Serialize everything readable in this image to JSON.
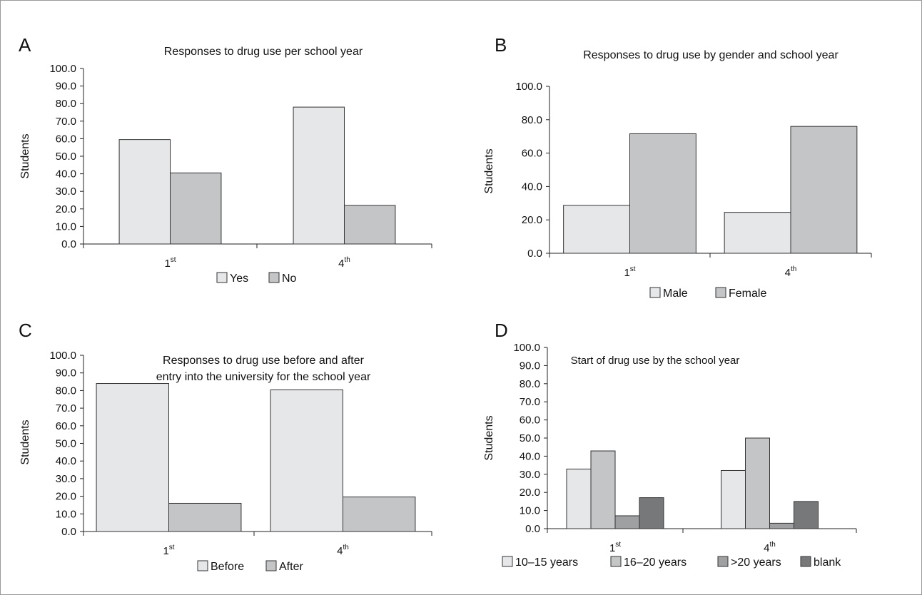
{
  "figure": {
    "panels": [
      {
        "letter": "A"
      },
      {
        "letter": "B"
      },
      {
        "letter": "C"
      },
      {
        "letter": "D"
      }
    ]
  },
  "chart_data": [
    {
      "panel": "A",
      "type": "bar",
      "title": "Responses to drug use per school year",
      "title_lines": [
        "Responses to drug use per school year"
      ],
      "ylabel": "Students",
      "xlabel": "",
      "ylim": [
        0,
        100
      ],
      "yticks": [
        "0.0",
        "10.0",
        "20.0",
        "30.0",
        "40.0",
        "50.0",
        "60.0",
        "70.0",
        "80.0",
        "90.0",
        "100.0"
      ],
      "categories": [
        {
          "base": "1",
          "sup": "st"
        },
        {
          "base": "4",
          "sup": "th"
        }
      ],
      "series": [
        {
          "name": "Yes",
          "color": "#e6e7e9",
          "values": [
            59.5,
            78.0
          ]
        },
        {
          "name": "No",
          "color": "#c4c5c7",
          "values": [
            40.5,
            22.0
          ]
        }
      ],
      "grid": false,
      "legend": "bottom"
    },
    {
      "panel": "B",
      "type": "bar",
      "title": "Responses to drug use by gender and school year",
      "title_lines": [
        "Responses to drug use by gender and school year"
      ],
      "ylabel": "Students",
      "xlabel": "",
      "ylim": [
        0,
        100
      ],
      "yticks": [
        "0.0",
        "20.0",
        "40.0",
        "60.0",
        "80.0",
        "100.0"
      ],
      "categories": [
        {
          "base": "1",
          "sup": "st"
        },
        {
          "base": "4",
          "sup": "th"
        }
      ],
      "series": [
        {
          "name": "Male",
          "color": "#e6e7e9",
          "values": [
            28.7,
            24.5
          ]
        },
        {
          "name": "Female",
          "color": "#c4c5c7",
          "values": [
            71.6,
            76.0
          ]
        }
      ],
      "grid": false,
      "legend": "bottom"
    },
    {
      "panel": "C",
      "type": "bar",
      "title": "Responses to drug use before and after entry into the university for the school year",
      "title_lines": [
        "Responses to drug use before and after",
        "entry into the university for the school year"
      ],
      "ylabel": "Students",
      "xlabel": "",
      "ylim": [
        0,
        100
      ],
      "yticks": [
        "0.0",
        "10.0",
        "20.0",
        "30.0",
        "40.0",
        "50.0",
        "60.0",
        "70.0",
        "80.0",
        "90.0",
        "100.0"
      ],
      "categories": [
        {
          "base": "1",
          "sup": "st"
        },
        {
          "base": "4",
          "sup": "th"
        }
      ],
      "series": [
        {
          "name": "Before",
          "color": "#e6e7e9",
          "values": [
            84.0,
            80.4
          ]
        },
        {
          "name": "After",
          "color": "#c4c5c7",
          "values": [
            16.0,
            19.6
          ]
        }
      ],
      "grid": false,
      "legend": "bottom"
    },
    {
      "panel": "D",
      "type": "bar",
      "title": "Start of drug use by the school year",
      "title_lines": [
        "Start of drug use by the school year"
      ],
      "ylabel": "Students",
      "xlabel": "",
      "ylim": [
        0,
        100
      ],
      "yticks": [
        "0.0",
        "10.0",
        "20.0",
        "30.0",
        "40.0",
        "50.0",
        "60.0",
        "70.0",
        "80.0",
        "90.0",
        "100.0"
      ],
      "categories": [
        {
          "base": "1",
          "sup": "st"
        },
        {
          "base": "4",
          "sup": "th"
        }
      ],
      "series": [
        {
          "name": "10–15 years",
          "color": "#e6e7e9",
          "values": [
            32.9,
            32.1
          ]
        },
        {
          "name": "16–20 years",
          "color": "#c4c5c7",
          "values": [
            42.9,
            50.0
          ]
        },
        {
          "name": ">20 years",
          "color": "#9fa0a2",
          "values": [
            7.1,
            3.0
          ]
        },
        {
          "name": "blank",
          "color": "#77787a",
          "values": [
            17.1,
            15.0
          ]
        }
      ],
      "grid": false,
      "legend": "bottom"
    }
  ]
}
